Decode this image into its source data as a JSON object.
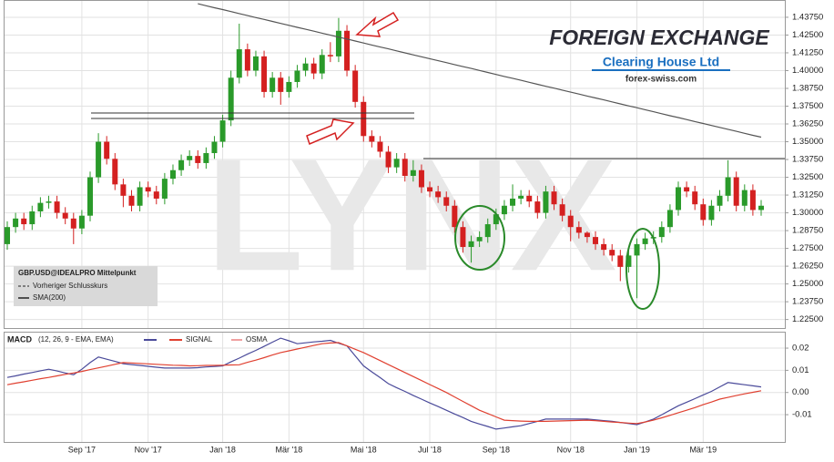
{
  "logo": {
    "title": "FOREIGN EXCHANGE",
    "subtitle": "Clearing House Ltd",
    "url": "forex-swiss.com"
  },
  "chart_data": [
    {
      "type": "candlestick",
      "watermark": "LYNX",
      "grid": true,
      "ylim": [
        1.219,
        1.449
      ],
      "yticks": [
        {
          "value": 1.225,
          "label": "1.22500"
        },
        {
          "value": 1.2375,
          "label": "1.23750"
        },
        {
          "value": 1.25,
          "label": "1.25000"
        },
        {
          "value": 1.2625,
          "label": "1.26250"
        },
        {
          "value": 1.275,
          "label": "1.27500"
        },
        {
          "value": 1.2875,
          "label": "1.28750"
        },
        {
          "value": 1.3,
          "label": "1.30000"
        },
        {
          "value": 1.3125,
          "label": "1.31250"
        },
        {
          "value": 1.325,
          "label": "1.32500"
        },
        {
          "value": 1.3375,
          "label": "1.33750"
        },
        {
          "value": 1.35,
          "label": "1.35000"
        },
        {
          "value": 1.3625,
          "label": "1.36250"
        },
        {
          "value": 1.375,
          "label": "1.37500"
        },
        {
          "value": 1.3875,
          "label": "1.38750"
        },
        {
          "value": 1.4,
          "label": "1.40000"
        },
        {
          "value": 1.4125,
          "label": "1.41250"
        },
        {
          "value": 1.425,
          "label": "1.42500"
        },
        {
          "value": 1.4375,
          "label": "1.43750"
        }
      ],
      "series": [
        {
          "name": "GBP.USD@IDEALPRO Mittelpunkt",
          "up_color": "#2a9a2a",
          "down_color": "#d42020",
          "open": [
            1.278,
            1.29,
            1.296,
            1.292,
            1.301,
            1.307,
            1.308,
            1.3,
            1.296,
            1.289,
            1.298,
            1.325,
            1.35,
            1.338,
            1.32,
            1.312,
            1.305,
            1.318,
            1.315,
            1.31,
            1.324,
            1.33,
            1.337,
            1.34,
            1.335,
            1.342,
            1.35,
            1.365,
            1.395,
            1.415,
            1.4,
            1.41,
            1.385,
            1.395,
            1.385,
            1.392,
            1.4,
            1.405,
            1.398,
            1.411,
            1.41,
            1.428,
            1.4,
            1.378,
            1.354,
            1.35,
            1.343,
            1.332,
            1.338,
            1.326,
            1.33,
            1.318,
            1.315,
            1.311,
            1.305,
            1.29,
            1.276,
            1.28,
            1.283,
            1.292,
            1.299,
            1.305,
            1.31,
            1.312,
            1.308,
            1.3,
            1.315,
            1.306,
            1.298,
            1.29,
            1.286,
            1.283,
            1.278,
            1.274,
            1.27,
            1.262,
            1.27,
            1.278,
            1.282,
            1.283,
            1.29,
            1.302,
            1.318,
            1.315,
            1.306,
            1.295,
            1.305,
            1.312,
            1.325,
            1.305,
            1.316,
            1.302
          ],
          "high": [
            1.294,
            1.3,
            1.3,
            1.305,
            1.311,
            1.312,
            1.312,
            1.304,
            1.3,
            1.302,
            1.329,
            1.356,
            1.354,
            1.342,
            1.324,
            1.316,
            1.322,
            1.322,
            1.319,
            1.328,
            1.334,
            1.341,
            1.344,
            1.344,
            1.346,
            1.354,
            1.369,
            1.4,
            1.433,
            1.419,
            1.414,
            1.414,
            1.399,
            1.399,
            1.396,
            1.404,
            1.409,
            1.409,
            1.415,
            1.42,
            1.437,
            1.432,
            1.404,
            1.382,
            1.358,
            1.354,
            1.347,
            1.342,
            1.342,
            1.337,
            1.334,
            1.322,
            1.319,
            1.315,
            1.309,
            1.294,
            1.284,
            1.287,
            1.296,
            1.303,
            1.309,
            1.32,
            1.316,
            1.316,
            1.312,
            1.319,
            1.319,
            1.31,
            1.302,
            1.294,
            1.287,
            1.287,
            1.282,
            1.278,
            1.274,
            1.274,
            1.282,
            1.286,
            1.287,
            1.294,
            1.306,
            1.322,
            1.322,
            1.319,
            1.31,
            1.309,
            1.316,
            1.337,
            1.329,
            1.32,
            1.32,
            1.309
          ],
          "low": [
            1.274,
            1.286,
            1.288,
            1.288,
            1.297,
            1.303,
            1.296,
            1.292,
            1.278,
            1.285,
            1.294,
            1.321,
            1.334,
            1.316,
            1.304,
            1.301,
            1.301,
            1.311,
            1.306,
            1.306,
            1.32,
            1.326,
            1.333,
            1.331,
            1.331,
            1.338,
            1.346,
            1.361,
            1.391,
            1.396,
            1.396,
            1.381,
            1.381,
            1.376,
            1.381,
            1.388,
            1.396,
            1.394,
            1.394,
            1.406,
            1.406,
            1.396,
            1.374,
            1.35,
            1.346,
            1.339,
            1.328,
            1.328,
            1.322,
            1.322,
            1.314,
            1.311,
            1.307,
            1.301,
            1.286,
            1.272,
            1.265,
            1.276,
            1.279,
            1.288,
            1.295,
            1.301,
            1.306,
            1.304,
            1.296,
            1.296,
            1.302,
            1.294,
            1.28,
            1.282,
            1.279,
            1.274,
            1.27,
            1.266,
            1.252,
            1.258,
            1.24,
            1.274,
            1.278,
            1.279,
            1.286,
            1.298,
            1.311,
            1.302,
            1.291,
            1.291,
            1.301,
            1.308,
            1.301,
            1.301,
            1.298,
            1.298
          ],
          "close": [
            1.29,
            1.296,
            1.292,
            1.301,
            1.307,
            1.308,
            1.3,
            1.296,
            1.289,
            1.298,
            1.325,
            1.35,
            1.338,
            1.32,
            1.312,
            1.305,
            1.318,
            1.315,
            1.31,
            1.324,
            1.33,
            1.337,
            1.34,
            1.335,
            1.342,
            1.35,
            1.365,
            1.395,
            1.415,
            1.4,
            1.41,
            1.385,
            1.395,
            1.385,
            1.392,
            1.4,
            1.405,
            1.398,
            1.411,
            1.41,
            1.428,
            1.4,
            1.378,
            1.354,
            1.35,
            1.343,
            1.332,
            1.338,
            1.326,
            1.33,
            1.318,
            1.315,
            1.311,
            1.305,
            1.29,
            1.276,
            1.28,
            1.283,
            1.292,
            1.299,
            1.305,
            1.31,
            1.312,
            1.308,
            1.3,
            1.315,
            1.306,
            1.298,
            1.29,
            1.286,
            1.283,
            1.278,
            1.274,
            1.27,
            1.262,
            1.27,
            1.278,
            1.282,
            1.283,
            1.29,
            1.302,
            1.318,
            1.315,
            1.306,
            1.295,
            1.305,
            1.312,
            1.325,
            1.305,
            1.316,
            1.302,
            1.305
          ]
        }
      ],
      "legend_notes": [
        "Vorheriger Schlusskurs"
      ],
      "lines": [
        {
          "name": "SMA(200)",
          "color": "#555555",
          "values": [
            null,
            null,
            null,
            null,
            null,
            null,
            null,
            null,
            null,
            null,
            null,
            null,
            null,
            null,
            null,
            null,
            null,
            null,
            null,
            null,
            null,
            null,
            null,
            1.447,
            1.4456,
            1.4442,
            1.4429,
            1.4415,
            1.4401,
            1.4387,
            1.4373,
            1.436,
            1.4346,
            1.4332,
            1.4318,
            1.4304,
            1.4291,
            1.4277,
            1.4263,
            1.4249,
            1.4235,
            1.4222,
            1.4208,
            1.4194,
            1.418,
            1.4166,
            1.4153,
            1.4139,
            1.4125,
            1.4111,
            1.4097,
            1.4084,
            1.407,
            1.4056,
            1.4042,
            1.4028,
            1.4015,
            1.4001,
            1.3987,
            1.3973,
            1.3959,
            1.3946,
            1.3932,
            1.3918,
            1.3904,
            1.389,
            1.3877,
            1.3863,
            1.3849,
            1.3835,
            1.3821,
            1.3808,
            1.3794,
            1.378,
            1.3766,
            1.3752,
            1.3739,
            1.3725,
            1.3711,
            1.3697,
            1.3683,
            1.367,
            1.3656,
            1.3642,
            1.3628,
            1.3614,
            1.3601,
            1.3587,
            1.3573,
            1.3559,
            1.3545,
            1.3532
          ]
        }
      ]
    },
    {
      "type": "line",
      "subtitle": "(12, 26, 9 - EMA, EMA)",
      "grid": true,
      "categories": [
        null,
        null,
        null,
        null,
        null,
        null,
        null,
        null,
        null,
        "Sep '17",
        null,
        null,
        null,
        null,
        null,
        null,
        null,
        "Nov '17",
        null,
        null,
        null,
        null,
        null,
        null,
        null,
        null,
        "Jan '18",
        null,
        null,
        null,
        null,
        null,
        null,
        null,
        "Mär '18",
        null,
        null,
        null,
        null,
        null,
        null,
        null,
        null,
        "Mai '18",
        null,
        null,
        null,
        null,
        null,
        null,
        null,
        "Jul '18",
        null,
        null,
        null,
        null,
        null,
        null,
        null,
        "Sep '18",
        null,
        null,
        null,
        null,
        null,
        null,
        null,
        null,
        "Nov '18",
        null,
        null,
        null,
        null,
        null,
        null,
        null,
        "Jan '19",
        null,
        null,
        null,
        null,
        null,
        null,
        null,
        "Mär '19",
        null,
        null,
        null,
        null,
        null,
        null,
        null
      ],
      "ylim": [
        -0.0223,
        0.027
      ],
      "yticks": [
        -0.01,
        {
          "value": 0,
          "label": "0.00"
        },
        0.01,
        0.02
      ],
      "series": [
        {
          "name": "MACD",
          "color": "#4a4a9a",
          "values": [
            0.0068,
            0.0075,
            0.0083,
            0.009,
            0.0098,
            0.0105,
            0.0097,
            0.0088,
            0.008,
            0.0105,
            0.0135,
            0.016,
            0.015,
            0.014,
            0.013,
            0.0126,
            0.0122,
            0.0118,
            0.0114,
            0.011,
            0.011,
            0.011,
            0.011,
            0.0112,
            0.0115,
            0.0117,
            0.012,
            0.0138,
            0.0155,
            0.0173,
            0.019,
            0.0208,
            0.0227,
            0.0245,
            0.0233,
            0.022,
            0.0224,
            0.0228,
            0.0231,
            0.0235,
            0.0222,
            0.021,
            0.0165,
            0.012,
            0.0093,
            0.0067,
            0.004,
            0.0022,
            0.0005,
            -0.0013,
            -0.003,
            -0.0047,
            -0.0063,
            -0.008,
            -0.0097,
            -0.0113,
            -0.013,
            -0.0142,
            -0.0153,
            -0.0165,
            -0.016,
            -0.0155,
            -0.015,
            -0.014,
            -0.013,
            -0.012,
            -0.012,
            -0.012,
            -0.012,
            -0.012,
            -0.012,
            -0.0123,
            -0.0127,
            -0.013,
            -0.0135,
            -0.014,
            -0.0145,
            -0.0133,
            -0.012,
            -0.01,
            -0.008,
            -0.006,
            -0.0044,
            -0.0028,
            -0.0011,
            0.0005,
            0.0025,
            0.0045,
            0.004,
            0.0035,
            0.003,
            0.0025
          ]
        },
        {
          "name": "SIGNAL",
          "color": "#e04030",
          "values": [
            0.0035,
            0.0042,
            0.0048,
            0.0055,
            0.0062,
            0.0068,
            0.0075,
            0.0082,
            0.0088,
            0.0095,
            0.0103,
            0.0111,
            0.0119,
            0.0127,
            0.0135,
            0.0133,
            0.0131,
            0.0129,
            0.0127,
            0.0125,
            0.0123,
            0.0122,
            0.012,
            0.0121,
            0.0122,
            0.0122,
            0.0123,
            0.0124,
            0.0125,
            0.0136,
            0.0146,
            0.0157,
            0.0169,
            0.018,
            0.0188,
            0.0196,
            0.0204,
            0.0212,
            0.022,
            0.0223,
            0.0225,
            0.021,
            0.0195,
            0.018,
            0.0162,
            0.0144,
            0.0126,
            0.0108,
            0.009,
            0.0072,
            0.0054,
            0.0036,
            0.0018,
            0.0,
            -0.002,
            -0.004,
            -0.006,
            -0.008,
            -0.0095,
            -0.011,
            -0.0125,
            -0.0127,
            -0.0129,
            -0.013,
            -0.013,
            -0.013,
            -0.0129,
            -0.0128,
            -0.0127,
            -0.0126,
            -0.0125,
            -0.0127,
            -0.013,
            -0.0133,
            -0.0135,
            -0.0138,
            -0.014,
            -0.0133,
            -0.0125,
            -0.0114,
            -0.0103,
            -0.0091,
            -0.008,
            -0.0068,
            -0.0055,
            -0.0043,
            -0.003,
            -0.0022,
            -0.0014,
            -0.0006,
            0.0001,
            0.0008
          ]
        }
      ],
      "legend_notes": [
        {
          "name": "OSMA",
          "color": "#f0a0a0"
        }
      ]
    }
  ]
}
